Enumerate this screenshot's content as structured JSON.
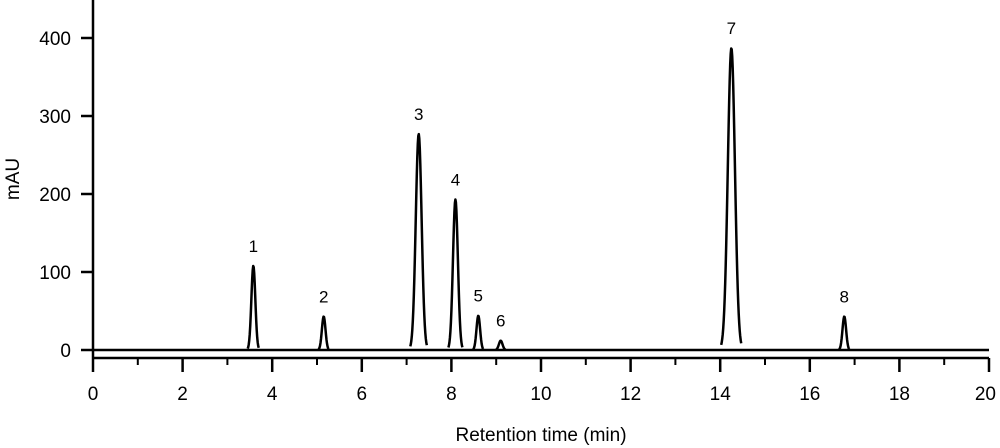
{
  "chart_data": {
    "type": "line",
    "title": "",
    "xlabel": "Retention time (min)",
    "ylabel": "mAU",
    "xlim": [
      0,
      20
    ],
    "ylim": [
      0,
      450
    ],
    "xticks": [
      0,
      2,
      4,
      6,
      8,
      10,
      12,
      14,
      16,
      18,
      20
    ],
    "yticks": [
      0,
      100,
      200,
      300,
      400
    ],
    "grid": false,
    "legend": "none",
    "line_color": "#000000",
    "series": [
      {
        "peaks": [
          {
            "label": "1",
            "x": 3.58,
            "y": 108
          },
          {
            "label": "2",
            "x": 5.15,
            "y": 43
          },
          {
            "label": "3",
            "x": 7.27,
            "y": 277
          },
          {
            "label": "4",
            "x": 8.09,
            "y": 193
          },
          {
            "label": "5",
            "x": 8.6,
            "y": 44
          },
          {
            "label": "6",
            "x": 9.1,
            "y": 12
          },
          {
            "label": "7",
            "x": 14.25,
            "y": 387
          },
          {
            "label": "8",
            "x": 16.77,
            "y": 43
          }
        ]
      }
    ]
  }
}
